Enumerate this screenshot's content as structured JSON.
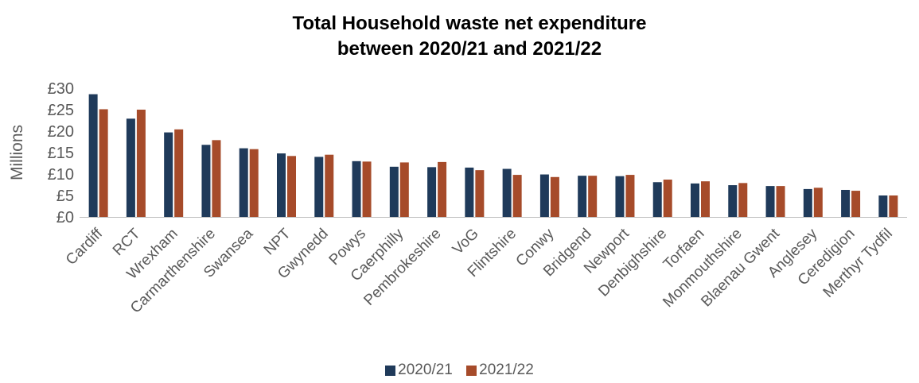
{
  "chart_data": {
    "type": "bar",
    "title_line1": "Total Household waste net expenditure",
    "title_line2": "between 2020/21 and 2021/22",
    "ylabel": "Millions",
    "xlabel": "",
    "ylim": [
      0,
      30
    ],
    "yticks": [
      "£0",
      "£5",
      "£10",
      "£15",
      "£20",
      "£25",
      "£30"
    ],
    "categories": [
      "Cardiff",
      "RCT",
      "Wrexham",
      "Carmarthenshire",
      "Swansea",
      "NPT",
      "Gwynedd",
      "Powys",
      "Caerphilly",
      "Pembrokeshire",
      "VoG",
      "Flintshire",
      "Conwy",
      "Bridgend",
      "Newport",
      "Denbighshire",
      "Torfaen",
      "Monmouthshire",
      "Blaenau Gwent",
      "Anglesey",
      "Ceredigion",
      "Merthyr Tydfil"
    ],
    "series": [
      {
        "name": "2020/21",
        "color": "#1f3a5a",
        "values": [
          28.6,
          22.9,
          19.7,
          16.8,
          16.0,
          14.8,
          14.0,
          13.0,
          11.7,
          11.6,
          11.5,
          11.2,
          9.9,
          9.6,
          9.5,
          8.1,
          7.8,
          7.4,
          7.2,
          6.5,
          6.3,
          5.0
        ]
      },
      {
        "name": "2021/22",
        "color": "#a64b2a",
        "values": [
          25.1,
          25.0,
          20.4,
          17.9,
          15.8,
          14.2,
          14.5,
          12.9,
          12.7,
          12.8,
          10.9,
          9.8,
          9.3,
          9.6,
          9.8,
          8.7,
          8.3,
          7.9,
          7.2,
          6.8,
          6.1,
          5.0
        ]
      }
    ],
    "grid": false,
    "legend_position": "bottom"
  }
}
